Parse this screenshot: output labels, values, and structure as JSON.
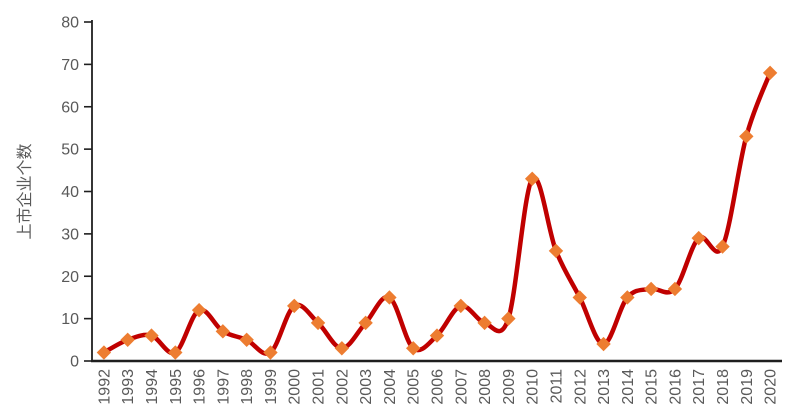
{
  "chart_data": {
    "type": "line",
    "title": "",
    "xlabel": "",
    "ylabel": "上市企业个数",
    "x": [
      "1992",
      "1993",
      "1994",
      "1995",
      "1996",
      "1997",
      "1998",
      "1999",
      "2000",
      "2001",
      "2002",
      "2003",
      "2004",
      "2005",
      "2006",
      "2007",
      "2008",
      "2009",
      "2010",
      "2011",
      "2012",
      "2013",
      "2014",
      "2015",
      "2016",
      "2017",
      "2018",
      "2019",
      "2020"
    ],
    "series": [
      {
        "name": "上市企业个数",
        "values": [
          2,
          5,
          6,
          2,
          12,
          7,
          5,
          2,
          13,
          9,
          3,
          9,
          15,
          3,
          6,
          13,
          9,
          10,
          43,
          26,
          15,
          4,
          15,
          17,
          17,
          29,
          27,
          53,
          68
        ]
      }
    ],
    "ylim": [
      0,
      80
    ],
    "y_ticks": [
      0,
      10,
      20,
      30,
      40,
      50,
      60,
      70,
      80
    ],
    "grid": false,
    "legend_position": "none",
    "smooth_line": true,
    "marker_shape": "diamond",
    "colors": {
      "line": "#C00000",
      "marker": "#ED7D31",
      "axis": "#1f1f1f",
      "tick_label": "#595959",
      "axis_title": "#595959",
      "background": "#ffffff"
    }
  }
}
